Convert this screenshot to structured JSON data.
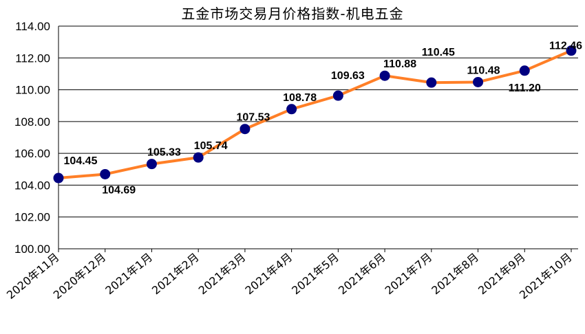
{
  "chart_data": {
    "type": "line",
    "title": "五金市场交易月价格指数-机电五金",
    "xlabel": "",
    "ylabel": "",
    "categories": [
      "2020年11月",
      "2020年12月",
      "2021年1月",
      "2021年2月",
      "2021年3月",
      "2021年4月",
      "2021年5月",
      "2021年6月",
      "2021年7月",
      "2021年8月",
      "2021年9月",
      "2021年10月"
    ],
    "series": [
      {
        "values": [
          104.45,
          104.69,
          105.33,
          105.74,
          107.53,
          108.78,
          109.63,
          110.88,
          110.45,
          110.48,
          111.2,
          112.46
        ],
        "line_color": "#FF7F27",
        "marker_color": "#000080"
      }
    ],
    "ylim": [
      100,
      114
    ],
    "yticks": [
      "100.00",
      "102.00",
      "104.00",
      "106.00",
      "108.00",
      "110.00",
      "112.00",
      "114.00"
    ],
    "data_labels": [
      "104.45",
      "104.69",
      "105.33",
      "105.74",
      "107.53",
      "108.78",
      "109.63",
      "110.88",
      "110.45",
      "110.48",
      "111.20",
      "112.46"
    ],
    "grid": true,
    "legend": "none"
  }
}
